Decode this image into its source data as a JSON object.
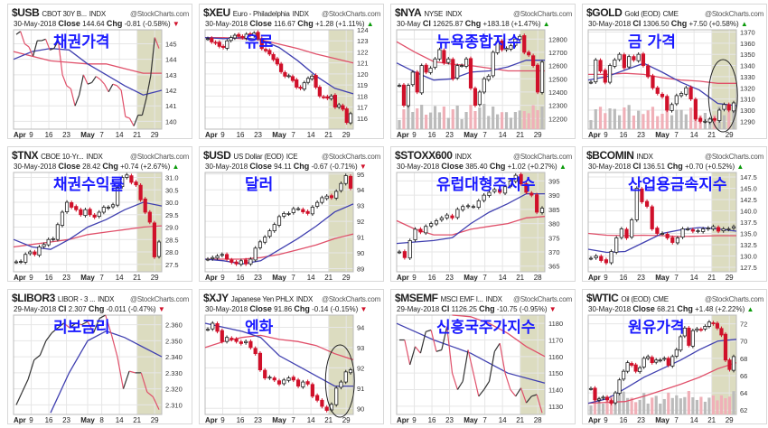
{
  "chart_data": [
    {
      "type": "line",
      "symbol": "$USB",
      "name": "CBOT 30Y B...",
      "exchange": "INDX",
      "watermark": "@StockCharts.com",
      "date": "30-May-2018",
      "close_label": "Close",
      "close": "144.64",
      "chg_label": "Chg",
      "chg": "-0.81 (-0.58%)",
      "dir": "down",
      "annotation": "채권가격",
      "ylim": [
        139.5,
        145.9
      ],
      "yticks": [
        "140",
        "141",
        "142",
        "143",
        "144",
        "145"
      ],
      "xticks": [
        "Apr",
        "9",
        "16",
        "23",
        "May",
        "7",
        "14",
        "21",
        "29"
      ],
      "closes": [
        145.6,
        145.8,
        145,
        144.8,
        144.2,
        145.2,
        145.2,
        145.3,
        144.6,
        144.7,
        145.2,
        143,
        142.3,
        142.1,
        141,
        141.7,
        143,
        142.4,
        142.5,
        142.9,
        142.7,
        142.4,
        141.9,
        142.4,
        142.3,
        142,
        140.3,
        140.2,
        139.7,
        140.4,
        140.4,
        141.5,
        142.9,
        145.4,
        144.7
      ],
      "ma_slow": [
        144.5,
        144.2,
        143.9,
        143.8,
        143.7,
        143.7,
        143.4,
        143.1,
        143.1
      ],
      "ma_fast": [
        144,
        144.5,
        144.7,
        144.6,
        143.7,
        143,
        142.3,
        141.7,
        142
      ]
    },
    {
      "type": "candle",
      "symbol": "$XEU",
      "name": "Euro - Philadelphia",
      "exchange": "INDX",
      "watermark": "@StockCharts.com",
      "date": "30-May-2018",
      "close_label": "Close",
      "close": "116.67",
      "chg_label": "Chg",
      "chg": "+1.28 (+1.11%)",
      "dir": "up",
      "annotation": "유로",
      "ylim": [
        115,
        124
      ],
      "yticks": [
        "116",
        "117",
        "118",
        "119",
        "120",
        "121",
        "122",
        "123",
        "124"
      ],
      "xticks": [
        "Apr",
        "9",
        "16",
        "23",
        "May",
        "7",
        "14",
        "21",
        "29"
      ],
      "closes": [
        123.2,
        122.9,
        122.8,
        122.5,
        122.4,
        123,
        123.3,
        123.5,
        123.4,
        123.3,
        123.6,
        123.5,
        123.7,
        123.2,
        122.3,
        122.1,
        121.8,
        121.3,
        120.9,
        120.2,
        119.8,
        119.8,
        119.4,
        118.8,
        118.7,
        119.2,
        119.6,
        119.8,
        118.8,
        118,
        117.9,
        117.8,
        118,
        117,
        117.2,
        116.8,
        115.6,
        116.4
      ],
      "ma_slow": [
        123.3,
        123.3,
        123.2,
        123.1,
        122.7,
        122.3,
        121.8,
        121.4,
        121
      ],
      "ma_fast": [
        123.3,
        123.2,
        123.3,
        123.1,
        122.4,
        121.2,
        119.8,
        118.7,
        118.2
      ]
    },
    {
      "type": "candle",
      "symbol": "$NYA",
      "name": "NYSE",
      "exchange": "INDX",
      "watermark": "@StockCharts.com",
      "date": "30-May",
      "close_label": "Cl",
      "close": "12625.87",
      "chg_label": "Chg",
      "chg": "+183.18 (+1.47%)",
      "dir": "up",
      "annotation": "뉴욕종합지수",
      "volume": true,
      "ylim": [
        12120,
        12870
      ],
      "yticks": [
        "12200",
        "12300",
        "12400",
        "12500",
        "12600",
        "12700",
        "12800"
      ],
      "xticks": [
        "Apr",
        "9",
        "16",
        "23",
        "May",
        "7",
        "14",
        "21",
        "29"
      ],
      "closes": [
        12450,
        12300,
        12450,
        12550,
        12400,
        12600,
        12550,
        12580,
        12650,
        12720,
        12620,
        12650,
        12500,
        12600,
        12600,
        12650,
        12430,
        12300,
        12400,
        12500,
        12520,
        12700,
        12780,
        12720,
        12730,
        12750,
        12800,
        12820,
        12700,
        12680,
        12600,
        12400,
        12626
      ],
      "ma_slow": [
        12780,
        12700,
        12630,
        12610,
        12600,
        12580,
        12560,
        12560,
        12560
      ],
      "ma_fast": [
        12620,
        12550,
        12490,
        12500,
        12550,
        12560,
        12590,
        12640,
        12640
      ]
    },
    {
      "type": "candle",
      "symbol": "$GOLD",
      "name": "Gold (EOD)",
      "exchange": "CME",
      "watermark": "@StockCharts.com",
      "date": "30-May-2018",
      "close_label": "Cl",
      "close": "1306.50",
      "chg_label": "Chg",
      "chg": "+7.50 (+0.58%)",
      "dir": "up",
      "annotation": "금 가격",
      "volume": true,
      "circle": true,
      "ylim": [
        1283,
        1372
      ],
      "yticks": [
        "1290",
        "1300",
        "1310",
        "1320",
        "1330",
        "1340",
        "1350",
        "1360",
        "1370"
      ],
      "xticks": [
        "Apr",
        "9",
        "16",
        "23",
        "May",
        "7",
        "14",
        "21",
        "29"
      ],
      "closes": [
        1325,
        1345,
        1335,
        1325,
        1340,
        1345,
        1350,
        1338,
        1348,
        1345,
        1350,
        1340,
        1330,
        1320,
        1315,
        1312,
        1300,
        1305,
        1313,
        1315,
        1320,
        1310,
        1292,
        1290,
        1290,
        1292,
        1291,
        1300,
        1305,
        1300,
        1306.5
      ],
      "ma_slow": [
        1332,
        1332,
        1333,
        1332,
        1329,
        1327,
        1326,
        1324,
        1324
      ],
      "ma_fast": [
        1327,
        1330,
        1336,
        1342,
        1334,
        1325,
        1318,
        1306,
        1304
      ]
    },
    {
      "type": "candle",
      "symbol": "$TNX",
      "name": "CBOE 10-Yr...",
      "exchange": "INDX",
      "watermark": "@StockCharts.com",
      "date": "30-May-2018",
      "close_label": "Close",
      "close": "28.42",
      "chg_label": "Chg",
      "chg": "+0.74 (+2.67%)",
      "dir": "up",
      "annotation": "채권수익률",
      "ylim": [
        27.2,
        31.2
      ],
      "yticks": [
        "27.5",
        "28.0",
        "28.5",
        "29.0",
        "29.5",
        "30.0",
        "30.5",
        "31.0"
      ],
      "xticks": [
        "Apr",
        "9",
        "16",
        "23",
        "May",
        "7",
        "14",
        "21",
        "29"
      ],
      "closes": [
        27.6,
        27.6,
        27.9,
        28.0,
        27.9,
        28.2,
        28.3,
        28.5,
        28.5,
        29.1,
        29.6,
        30.0,
        29.8,
        29.7,
        29.5,
        29.7,
        29.5,
        29.4,
        29.6,
        29.8,
        29.8,
        29.9,
        30.6,
        31.0,
        31.1,
        30.8,
        30.7,
        30.1,
        29.6,
        29.2,
        27.8,
        28.4
      ],
      "ma_slow": [
        28.2,
        28.3,
        28.4,
        28.5,
        28.7,
        28.8,
        28.9,
        29.0,
        29.05
      ],
      "ma_fast": [
        28.5,
        28.2,
        28.1,
        28.5,
        29.0,
        29.3,
        29.7,
        30.0,
        29.85
      ]
    },
    {
      "type": "candle",
      "symbol": "$USD",
      "name": "US Dollar (EOD)",
      "exchange": "ICE",
      "watermark": "@StockCharts.com",
      "date": "30-May-2018",
      "close_label": "Close",
      "close": "94.11",
      "chg_label": "Chg",
      "chg": "-0.67 (-0.71%)",
      "dir": "down",
      "annotation": "달러",
      "ylim": [
        88.8,
        95.1
      ],
      "yticks": [
        "89",
        "90",
        "91",
        "92",
        "93",
        "94",
        "95"
      ],
      "xticks": [
        "Apr",
        "9",
        "16",
        "23",
        "May",
        "7",
        "14",
        "21",
        "29"
      ],
      "closes": [
        89.6,
        89.7,
        89.8,
        89.9,
        89.6,
        89.4,
        89.3,
        89.5,
        89.3,
        89.6,
        90.3,
        90.7,
        91,
        91.4,
        91.8,
        92.3,
        92.5,
        92.5,
        92.8,
        92.8,
        92.6,
        92.5,
        92.9,
        93.2,
        93.5,
        93.6,
        93.5,
        93.9,
        94.4,
        94.9,
        94.1
      ],
      "ma_slow": [
        89.6,
        89.6,
        89.6,
        89.7,
        89.9,
        90.2,
        90.5,
        90.9,
        91.2
      ],
      "ma_fast": [
        89.6,
        89.5,
        89.3,
        89.5,
        90.2,
        90.9,
        91.7,
        92.6,
        93.1
      ]
    },
    {
      "type": "candle",
      "symbol": "$STOXX600",
      "name": "",
      "exchange": "INDX",
      "watermark": "@StockCharts.com",
      "date": "30-May-2018",
      "close_label": "Close",
      "close": "385.40",
      "chg_label": "Chg",
      "chg": "+1.02 (+0.27%)",
      "dir": "up",
      "annotation": "유럽대형주지수",
      "ylim": [
        363,
        398
      ],
      "yticks": [
        "365",
        "370",
        "375",
        "380",
        "385",
        "390",
        "395"
      ],
      "xticks": [
        "Apr",
        "9",
        "16",
        "23",
        "May",
        "7",
        "14",
        "21",
        "28"
      ],
      "closes": [
        370,
        368,
        374,
        378,
        377,
        379,
        380,
        381,
        382,
        383,
        382,
        385,
        386,
        386,
        386,
        388,
        390,
        391,
        392,
        391,
        393,
        395,
        397,
        394,
        391,
        390,
        384,
        385.4
      ],
      "ma_slow": [
        381,
        378,
        376,
        376,
        378,
        379,
        380,
        382,
        382.5
      ],
      "ma_fast": [
        373,
        373.5,
        374,
        375,
        380,
        384,
        387,
        390.5,
        390.5
      ]
    },
    {
      "type": "candle",
      "symbol": "$BCOMIN",
      "name": "",
      "exchange": "INDX",
      "watermark": "@StockCharts.com",
      "date": "30-May-2018",
      "close_label": "Cl",
      "close": "136.51",
      "chg_label": "Chg",
      "chg": "+0.70 (+0.52%)",
      "dir": "up",
      "annotation": "산업용금속지수",
      "ylim": [
        126.5,
        148.5
      ],
      "yticks": [
        "127.5",
        "130.0",
        "132.5",
        "135.0",
        "137.5",
        "140.0",
        "142.5",
        "145.0",
        "147.5"
      ],
      "xticks": [
        "Apr",
        "9",
        "16",
        "23",
        "May",
        "7",
        "14",
        "21",
        "29"
      ],
      "closes": [
        129.5,
        130,
        129,
        128.5,
        131,
        134,
        136,
        134,
        138,
        145,
        142,
        141,
        136,
        135,
        135,
        134,
        133,
        134,
        136,
        136,
        135.5,
        135.5,
        136,
        136,
        136.5,
        135.5,
        136,
        136,
        136.5
      ],
      "ma_slow": [
        135,
        134.6,
        134.5,
        134.6,
        134.5,
        134.3,
        134.4,
        134.5,
        134.5
      ],
      "ma_fast": [
        131.5,
        130.8,
        131,
        133,
        135,
        135.8,
        136.3,
        136,
        135.5
      ]
    },
    {
      "type": "line",
      "symbol": "$LIBOR3",
      "name": "LIBOR - 3 ...",
      "exchange": "INDX",
      "watermark": "@StockCharts.com",
      "date": "29-May-2018",
      "close_label": "Cl",
      "close": "2.307",
      "chg_label": "Chg",
      "chg": "-0.011 (-0.47%)",
      "dir": "down",
      "annotation": "리보금리",
      "ylim": [
        2.304,
        2.366
      ],
      "yticks": [
        "2.310",
        "2.320",
        "2.330",
        "2.340",
        "2.350",
        "2.360"
      ],
      "xticks": [
        "Apr",
        "9",
        "16",
        "23",
        "May",
        "8",
        "14",
        "21",
        "29"
      ],
      "closes": [
        2.31,
        2.318,
        2.326,
        2.338,
        2.341,
        2.35,
        2.355,
        2.358,
        2.361,
        2.358,
        2.361,
        2.36,
        2.362,
        2.355,
        2.364,
        2.366,
        2.354,
        2.34,
        2.32,
        2.331,
        2.33,
        2.33,
        2.318,
        2.315,
        2.307
      ],
      "ma_fast": [
        null,
        null,
        2.305,
        2.33,
        2.35,
        2.356,
        2.352,
        2.346,
        2.34
      ]
    },
    {
      "type": "candle",
      "symbol": "$XJY",
      "name": "Japanese Yen PHLX",
      "exchange": "INDX",
      "watermark": "@StockCharts.com",
      "date": "30-May-2018",
      "close_label": "Close",
      "close": "91.86",
      "chg_label": "Chg",
      "chg": "-0.14 (-0.15%)",
      "dir": "down",
      "annotation": "엔화",
      "circle": true,
      "ylim": [
        89.7,
        94.6
      ],
      "yticks": [
        "90",
        "91",
        "92",
        "93",
        "94"
      ],
      "xticks": [
        "Apr",
        "9",
        "16",
        "23",
        "May",
        "7",
        "14",
        "21",
        "29"
      ],
      "closes": [
        93.9,
        94.2,
        93.8,
        93.3,
        93.5,
        93.4,
        93.3,
        93.2,
        93.3,
        93.0,
        92.7,
        91.9,
        91.5,
        91.5,
        91.4,
        91.2,
        91.4,
        91.5,
        91.4,
        91.1,
        91.3,
        91.2,
        90.6,
        90.4,
        90.1,
        89.9,
        90.2,
        91.0,
        91.3,
        91.8,
        91.9
      ],
      "ma_slow": [
        93,
        93.3,
        93.5,
        93.6,
        93.4,
        93.3,
        93.1,
        92.7,
        92.4
      ],
      "ma_fast": [
        94.2,
        94.0,
        93.8,
        93.5,
        92.6,
        92.1,
        91.6,
        91.1,
        91.1
      ]
    },
    {
      "type": "line",
      "symbol": "$MSEMF",
      "name": "MSCI EMF I...",
      "exchange": "INDX",
      "watermark": "@StockCharts.com",
      "date": "29-May-2018",
      "close_label": "Cl",
      "close": "1126.25",
      "chg_label": "Chg",
      "chg": "-10.75 (-0.95%)",
      "dir": "down",
      "annotation": "신흥국주가지수",
      "ylim": [
        1125,
        1185
      ],
      "yticks": [
        "1130",
        "1140",
        "1150",
        "1160",
        "1170",
        "1180"
      ],
      "xticks": [
        "Apr",
        "9",
        "16",
        "23",
        "May",
        "7",
        "14",
        "21",
        "28"
      ],
      "closes": [
        1170,
        1170,
        1155,
        1166,
        1162,
        1175,
        1176,
        1163,
        1164,
        1178,
        1150,
        1140,
        1145,
        1164,
        1150,
        1136,
        1140,
        1145,
        1163,
        1168,
        1150,
        1140,
        1136,
        1141,
        1132,
        1136,
        1137,
        1126
      ],
      "ma_slow": [
        null,
        null,
        null,
        1186,
        1184,
        1180,
        1174,
        1166,
        1160
      ],
      "ma_fast": [
        1180,
        1175,
        1170,
        1166,
        1162,
        1156,
        1150,
        1147,
        1144
      ]
    },
    {
      "type": "candle",
      "symbol": "$WTIC",
      "name": "Oil (EOD)",
      "exchange": "CME",
      "watermark": "@StockCharts.com",
      "date": "30-May-2018",
      "close_label": "Close",
      "close": "68.21",
      "chg_label": "Chg",
      "chg": "+1.48 (+2.22%)",
      "dir": "up",
      "annotation": "원유가격",
      "volume": true,
      "ylim": [
        61.5,
        73
      ],
      "yticks": [
        "62",
        "64",
        "66",
        "68",
        "70",
        "72"
      ],
      "xticks": [
        "Apr",
        "9",
        "16",
        "23",
        "May",
        "7",
        "14",
        "21",
        "29"
      ],
      "closes": [
        64.5,
        63.2,
        63.3,
        63.5,
        63.2,
        62.8,
        64,
        65.5,
        66.5,
        67.5,
        67.2,
        66.5,
        66.9,
        68,
        68.2,
        67.5,
        67.8,
        67.8,
        68,
        67.2,
        68.2,
        69,
        70.5,
        71.5,
        69.5,
        71.2,
        71.4,
        71.3,
        71.7,
        72.2,
        72,
        71.5,
        70.7,
        67.8,
        66.7,
        68.2
      ],
      "ma_slow": [
        62.8,
        62.9,
        63,
        63.6,
        64.3,
        65,
        65.8,
        66.8,
        67.5
      ],
      "ma_fast": [
        62.8,
        63.3,
        64.5,
        65.8,
        66.8,
        67.8,
        69,
        70,
        70.2
      ]
    }
  ]
}
